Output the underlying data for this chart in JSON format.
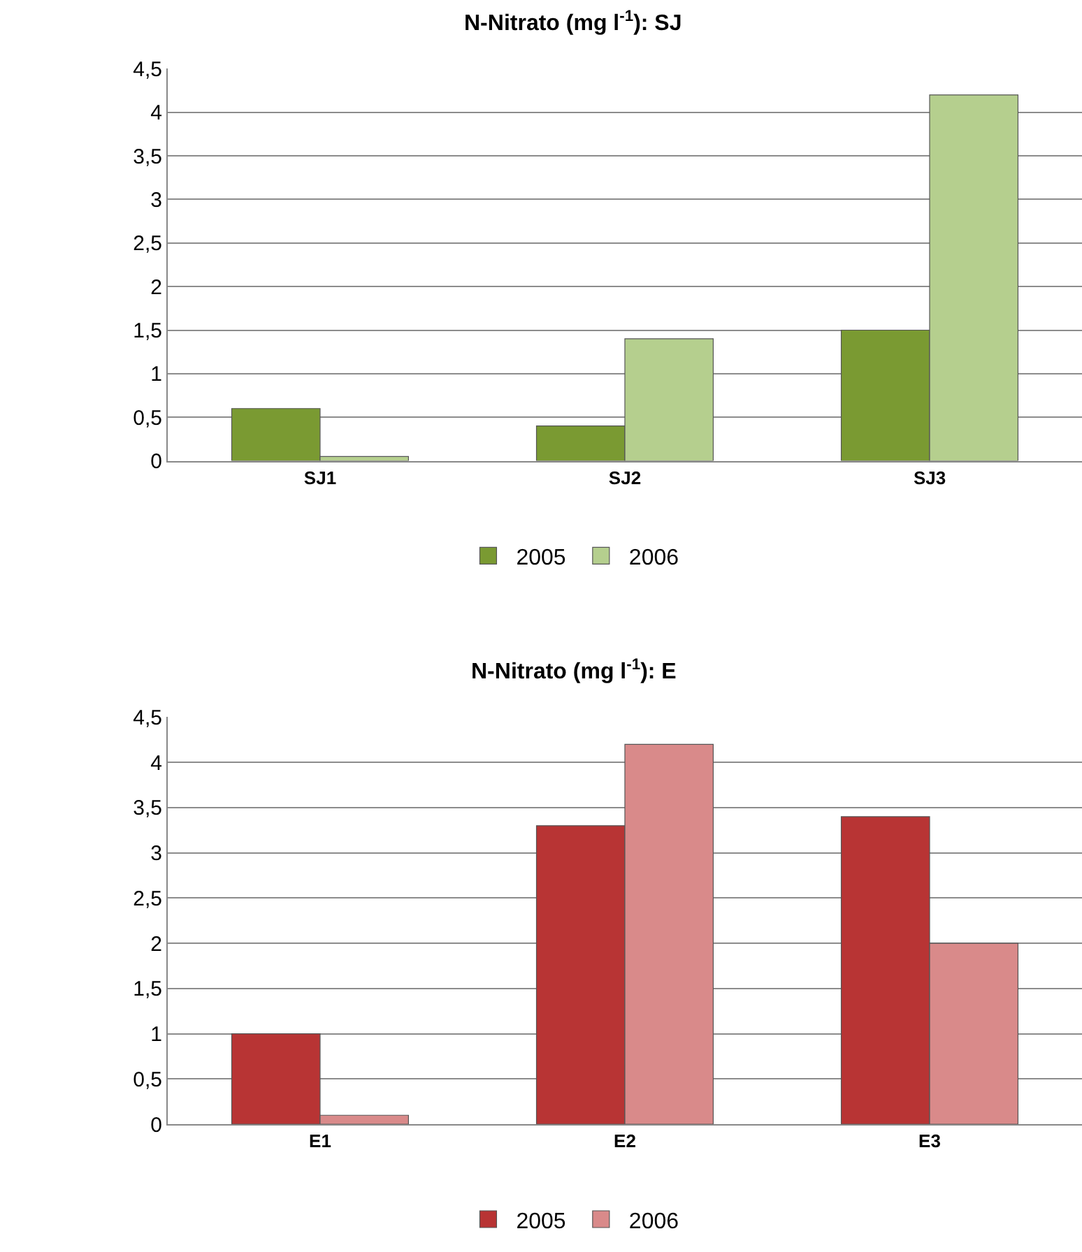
{
  "chart_data": [
    {
      "type": "bar",
      "title": "N-Nitrato (mg l$^{-1}$): SJ",
      "categories": [
        "SJ1",
        "SJ2",
        "SJ3"
      ],
      "series": [
        {
          "name": "2005",
          "color": "#7a9a32",
          "values": [
            0.6,
            0.4,
            1.5
          ]
        },
        {
          "name": "2006",
          "color": "#b5cf8e",
          "values": [
            0.05,
            1.4,
            4.2
          ]
        }
      ],
      "ylim": [
        0,
        4.5
      ],
      "yticks": [
        {
          "value": 0,
          "label": "0"
        },
        {
          "value": 0.5,
          "label": "0,5"
        },
        {
          "value": 1,
          "label": "1"
        },
        {
          "value": 1.5,
          "label": "1,5"
        },
        {
          "value": 2,
          "label": "2"
        },
        {
          "value": 2.5,
          "label": "2,5"
        },
        {
          "value": 3,
          "label": "3"
        },
        {
          "value": 3.5,
          "label": "3,5"
        },
        {
          "value": 4,
          "label": "4"
        },
        {
          "value": 4.5,
          "label": "4,5"
        }
      ],
      "grid": "y",
      "legend": "bottom"
    },
    {
      "type": "bar",
      "title": "N-Nitrato (mg l$^{-1}$): E",
      "categories": [
        "E1",
        "E2",
        "E3"
      ],
      "series": [
        {
          "name": "2005",
          "color": "#b83434",
          "values": [
            1.0,
            3.3,
            3.4
          ]
        },
        {
          "name": "2006",
          "color": "#d98a8a",
          "values": [
            0.1,
            4.2,
            2.0
          ]
        }
      ],
      "ylim": [
        0,
        4.5
      ],
      "yticks": [
        {
          "value": 0,
          "label": "0"
        },
        {
          "value": 0.5,
          "label": "0,5"
        },
        {
          "value": 1,
          "label": "1"
        },
        {
          "value": 1.5,
          "label": "1,5"
        },
        {
          "value": 2,
          "label": "2"
        },
        {
          "value": 2.5,
          "label": "2,5"
        },
        {
          "value": 3,
          "label": "3"
        },
        {
          "value": 3.5,
          "label": "3,5"
        },
        {
          "value": 4,
          "label": "4"
        },
        {
          "value": 4.5,
          "label": "4,5"
        }
      ],
      "grid": "y",
      "legend": "bottom"
    }
  ]
}
